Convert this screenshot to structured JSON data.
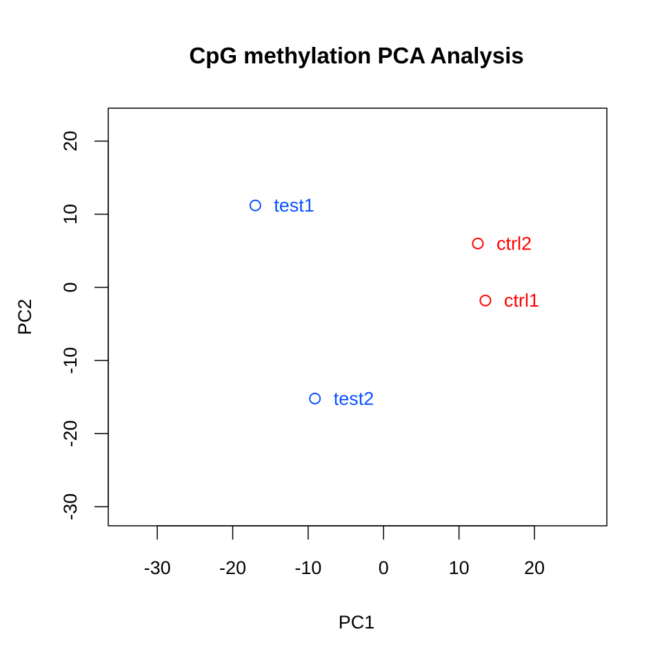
{
  "chart_data": {
    "type": "scatter",
    "title": "CpG methylation PCA Analysis",
    "xlabel": "PC1",
    "ylabel": "PC2",
    "xlim": [
      -36.5,
      29.6
    ],
    "ylim": [
      -32.6,
      24.5
    ],
    "xticks": [
      -30,
      -20,
      -10,
      0,
      10,
      20
    ],
    "yticks": [
      -30,
      -20,
      -10,
      0,
      10,
      20
    ],
    "grid": false,
    "points": [
      {
        "label": "test1",
        "x": -17.0,
        "y": 11.2,
        "color": "#0a50ff"
      },
      {
        "label": "test2",
        "x": -9.1,
        "y": -15.2,
        "color": "#0a50ff"
      },
      {
        "label": "ctrl2",
        "x": 12.5,
        "y": 6.0,
        "color": "#ff0000"
      },
      {
        "label": "ctrl1",
        "x": 13.5,
        "y": -1.8,
        "color": "#ff0000"
      }
    ]
  }
}
